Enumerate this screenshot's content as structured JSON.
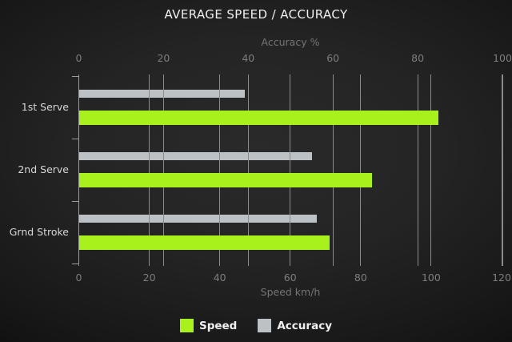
{
  "title": "AVERAGE SPEED / ACCURACY",
  "chart_data": {
    "type": "bar",
    "orientation": "horizontal",
    "title": "AVERAGE SPEED / ACCURACY",
    "categories": [
      "1st Serve",
      "2nd Serve",
      "Grnd Stroke"
    ],
    "series": [
      {
        "name": "Speed",
        "axis": "bottom",
        "color": "#a8f11c",
        "values": [
          102,
          83,
          71
        ]
      },
      {
        "name": "Accuracy",
        "axis": "top",
        "color": "#bcc1c5",
        "values": [
          39,
          55,
          56
        ]
      }
    ],
    "axes": {
      "top": {
        "label": "Accuracy %",
        "min": 0,
        "max": 100,
        "ticks": [
          0,
          20,
          40,
          60,
          80,
          100
        ]
      },
      "bottom": {
        "label": "Speed km/h",
        "min": 0,
        "max": 120,
        "ticks": [
          0,
          20,
          40,
          60,
          80,
          100,
          120
        ]
      }
    },
    "grid": true,
    "legend_position": "bottom"
  },
  "colors": {
    "speed_bar": "#a8f11c",
    "accuracy_bar": "#bcc1c5",
    "gridline": "#8b8b8b",
    "background_center": "#2a2a2a",
    "background_edge": "#0d0d0d",
    "title_text": "#f0f0f0",
    "tick_text": "#7d7d7d",
    "axis_label_text": "#757575",
    "category_text": "#d6d6d6"
  }
}
